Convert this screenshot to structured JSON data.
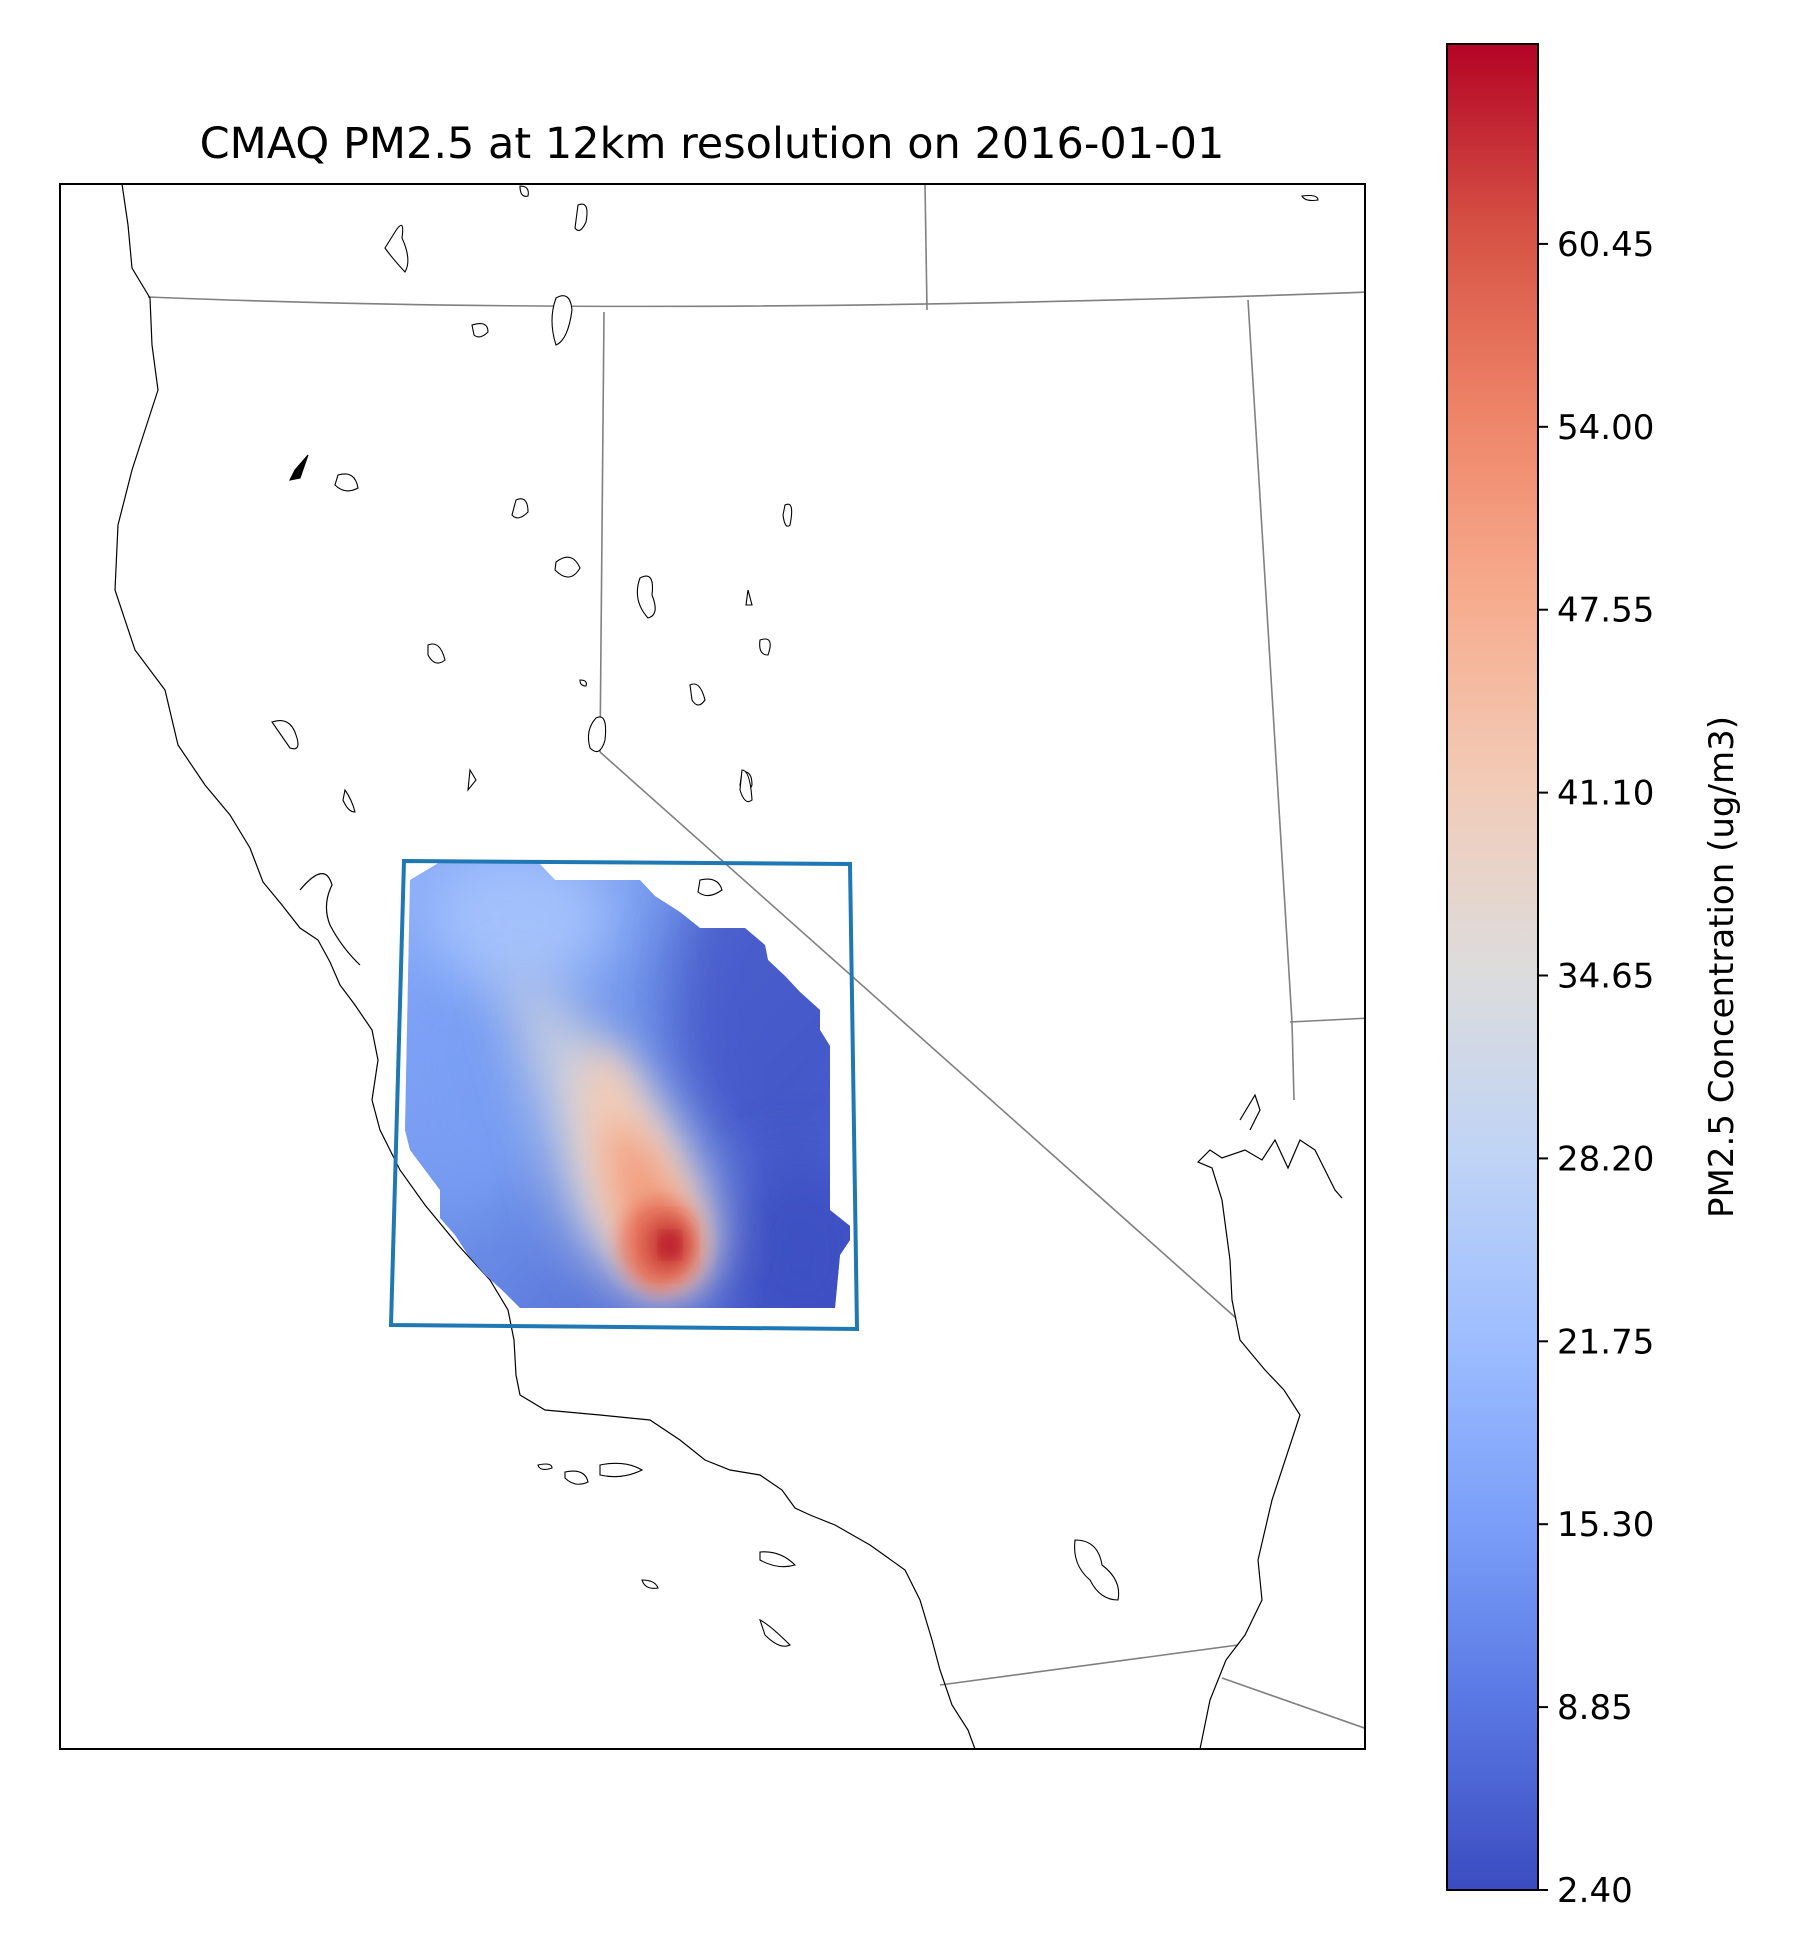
{
  "title": "CMAQ PM2.5 at 12km resolution on 2016-01-01",
  "colorbar": {
    "label": "PM2.5 Concentration (ug/m3)",
    "colormap": "coolwarm",
    "range": [
      2.4,
      67.5
    ],
    "ticks": [
      "2.40",
      "8.85",
      "15.30",
      "21.75",
      "28.20",
      "34.65",
      "41.10",
      "47.55",
      "54.00",
      "60.45"
    ],
    "colors": [
      "#3b4cc0",
      "#5977e3",
      "#7b9ff9",
      "#9ebeff",
      "#c0d4f5",
      "#dddcdc",
      "#f2cbb7",
      "#f7ac8e",
      "#ee8468",
      "#d65244",
      "#b40426"
    ]
  },
  "map": {
    "region": "California / Nevada",
    "domain_box_color": "#1f77b4",
    "state_border_color": "#808080",
    "coastline_color": "#000000",
    "peak_value_approx": 67.5,
    "min_value_approx": 2.4
  }
}
